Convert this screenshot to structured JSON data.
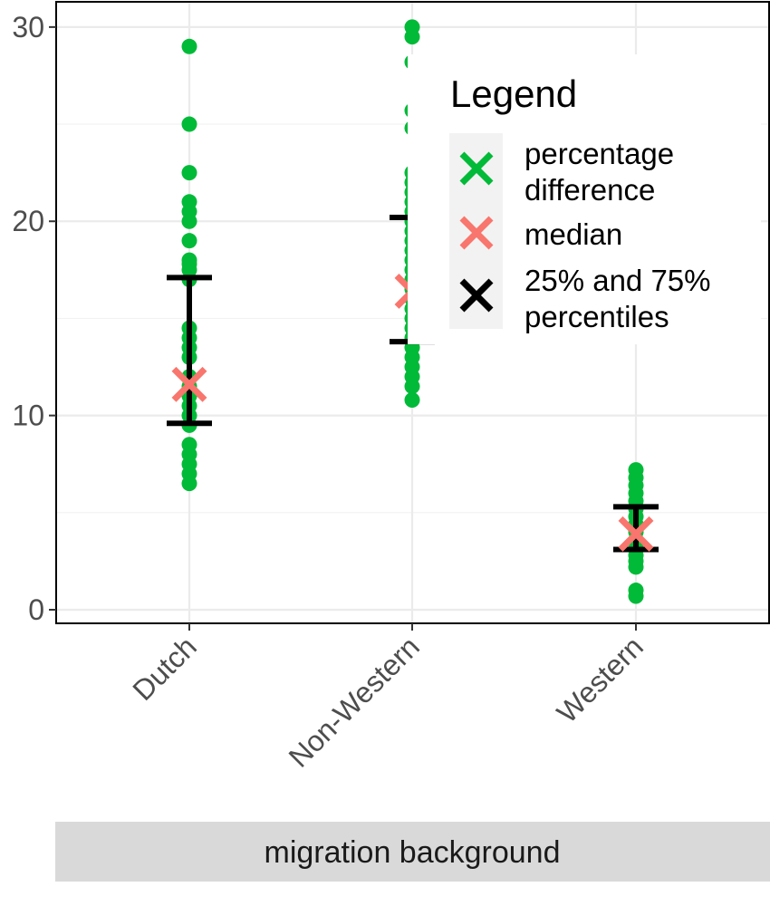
{
  "chart_data": {
    "type": "scatter",
    "categories": [
      "Dutch",
      "Non-Western",
      "Western"
    ],
    "ylim": [
      -0.7,
      31.3
    ],
    "yticks": [
      0,
      10,
      20,
      30
    ],
    "grid": true,
    "xlabel": "migration background",
    "legend": {
      "title": "Legend",
      "placement": "top-right",
      "entries": [
        {
          "label": [
            "percentage",
            "difference"
          ],
          "color": "#00BA38"
        },
        {
          "label": [
            "median"
          ],
          "color": "#F8766D"
        },
        {
          "label": [
            "25% and 75%",
            "percentiles"
          ],
          "color": "#000000"
        }
      ]
    },
    "series": [
      {
        "name": "percentage difference",
        "color": "#00BA38",
        "points": [
          {
            "x": "Dutch",
            "values": [
              29.0,
              25.0,
              22.5,
              21.0,
              20.5,
              20.0,
              19.0,
              18.0,
              17.8,
              17.5,
              17.0,
              14.5,
              14.0,
              13.5,
              13.0,
              12.0,
              11.5,
              11.0,
              10.5,
              10.0,
              9.5,
              8.5,
              8.0,
              7.5,
              7.0,
              6.5
            ]
          },
          {
            "x": "Non-Western",
            "values": [
              30.0,
              29.5,
              28.2,
              25.7,
              24.8,
              22.5,
              22.0,
              21.5,
              21.0,
              20.5,
              20.0,
              19.5,
              19.0,
              18.5,
              18.0,
              17.5,
              17.0,
              16.5,
              16.0,
              15.5,
              15.0,
              14.5,
              14.0,
              13.5,
              13.0,
              12.5,
              12.0,
              11.5,
              10.8
            ]
          },
          {
            "x": "Western",
            "values": [
              7.2,
              6.8,
              6.4,
              6.0,
              5.6,
              5.2,
              4.8,
              4.4,
              4.0,
              3.6,
              3.2,
              2.8,
              2.5,
              2.2,
              1.0,
              0.7
            ]
          }
        ]
      },
      {
        "name": "median",
        "color": "#F8766D",
        "points": [
          {
            "x": "Dutch",
            "value": 11.6
          },
          {
            "x": "Non-Western",
            "value": 16.4
          },
          {
            "x": "Western",
            "value": 3.9
          }
        ]
      },
      {
        "name": "25% and 75% percentiles",
        "color": "#000000",
        "points": [
          {
            "x": "Dutch",
            "low": 9.6,
            "high": 17.1
          },
          {
            "x": "Non-Western",
            "low": 13.8,
            "high": 20.2
          },
          {
            "x": "Western",
            "low": 3.1,
            "high": 5.3
          }
        ]
      }
    ]
  }
}
